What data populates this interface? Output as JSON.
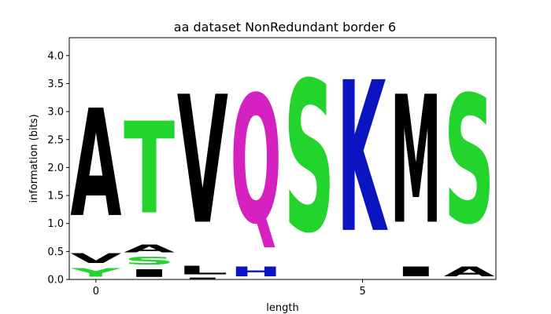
{
  "chart_data": {
    "type": "sequence-logo",
    "title": "aa dataset NonRedundant border 6",
    "xlabel": "length",
    "ylabel": "information (bits)",
    "xlim": [
      -0.5,
      7.5
    ],
    "ylim": [
      0,
      4.32
    ],
    "xticks": [
      0,
      5
    ],
    "yticks": [
      0.0,
      0.5,
      1.0,
      1.5,
      2.0,
      2.5,
      3.0,
      3.5,
      4.0
    ],
    "colors": {
      "black": "#000000",
      "green": "#22d42c",
      "magenta": "#d421c0",
      "blue": "#0a14c0"
    },
    "positions": [
      {
        "x": 0,
        "letters": [
          {
            "char": "Y",
            "bottom": 0.0,
            "top": 0.24,
            "color": "green"
          },
          {
            "char": "V",
            "bottom": 0.24,
            "top": 0.52,
            "color": "black"
          },
          {
            "char": "A",
            "bottom": 0.52,
            "top": 3.6,
            "color": "black"
          }
        ]
      },
      {
        "x": 1,
        "letters": [
          {
            "char": "I",
            "bottom": 0.0,
            "top": 0.22,
            "color": "black"
          },
          {
            "char": "S",
            "bottom": 0.22,
            "top": 0.44,
            "color": "green"
          },
          {
            "char": "A",
            "bottom": 0.44,
            "top": 0.66,
            "color": "black"
          },
          {
            "char": "T",
            "bottom": 0.66,
            "top": 3.29,
            "color": "green"
          }
        ]
      },
      {
        "x": 2,
        "letters": [
          {
            "char": "I",
            "bottom": 0.0,
            "top": 0.04,
            "color": "black"
          },
          {
            "char": "L",
            "bottom": 0.04,
            "top": 0.28,
            "color": "black"
          },
          {
            "char": "V",
            "bottom": 0.28,
            "top": 3.95,
            "color": "black"
          }
        ]
      },
      {
        "x": 3,
        "letters": [
          {
            "char": "H",
            "bottom": 0.0,
            "top": 0.28,
            "color": "blue"
          },
          {
            "char": "Q",
            "bottom": 0.28,
            "top": 3.95,
            "color": "magenta"
          }
        ]
      },
      {
        "x": 4,
        "letters": [
          {
            "char": "S",
            "bottom": 0.0,
            "top": 4.32,
            "color": "green"
          }
        ]
      },
      {
        "x": 5,
        "letters": [
          {
            "char": "K",
            "bottom": 0.0,
            "top": 4.32,
            "color": "blue"
          }
        ]
      },
      {
        "x": 6,
        "letters": [
          {
            "char": "I",
            "bottom": 0.0,
            "top": 0.28,
            "color": "black"
          },
          {
            "char": "M",
            "bottom": 0.28,
            "top": 3.95,
            "color": "black"
          }
        ]
      },
      {
        "x": 7,
        "letters": [
          {
            "char": "A",
            "bottom": 0.0,
            "top": 0.28,
            "color": "black"
          },
          {
            "char": "S",
            "bottom": 0.28,
            "top": 3.95,
            "color": "green"
          }
        ]
      }
    ]
  }
}
